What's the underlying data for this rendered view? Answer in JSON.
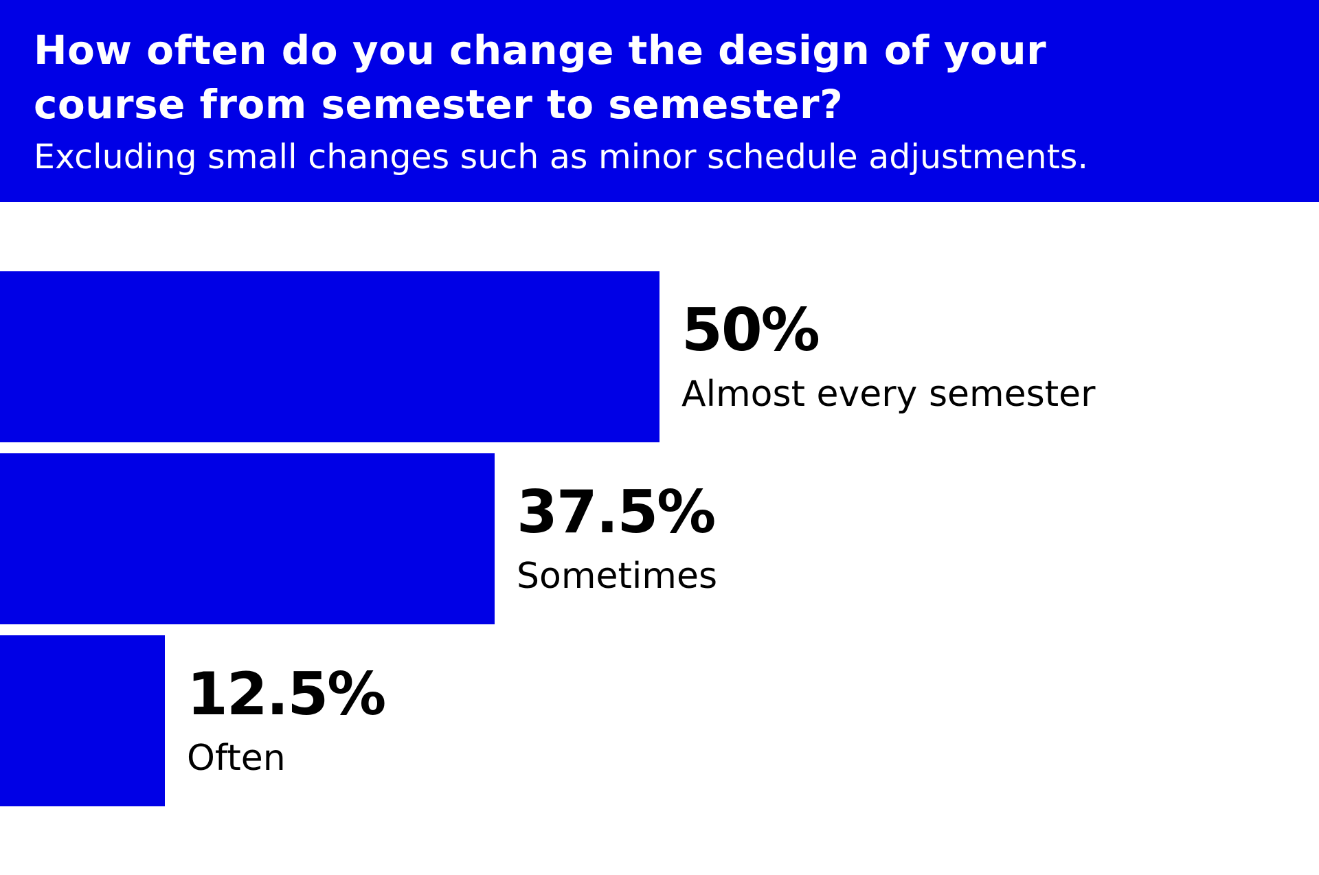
{
  "header": {
    "title": "How often do you change the design of your course from semester to semester?",
    "subtitle": "Excluding small changes such as minor schedule adjustments."
  },
  "colors": {
    "accent": "#0000e6",
    "background": "#ffffff",
    "text": "#000000"
  },
  "chart_data": {
    "type": "bar",
    "orientation": "horizontal",
    "title": "How often do you change the design of your course from semester to semester?",
    "subtitle": "Excluding small changes such as minor schedule adjustments.",
    "categories": [
      "Almost every semester",
      "Sometimes",
      "Often"
    ],
    "values": [
      50,
      37.5,
      12.5
    ],
    "value_labels": [
      "50%",
      "37.5%",
      "12.5%"
    ],
    "xlim": [
      0,
      100
    ],
    "grid": false,
    "legend": "none"
  }
}
